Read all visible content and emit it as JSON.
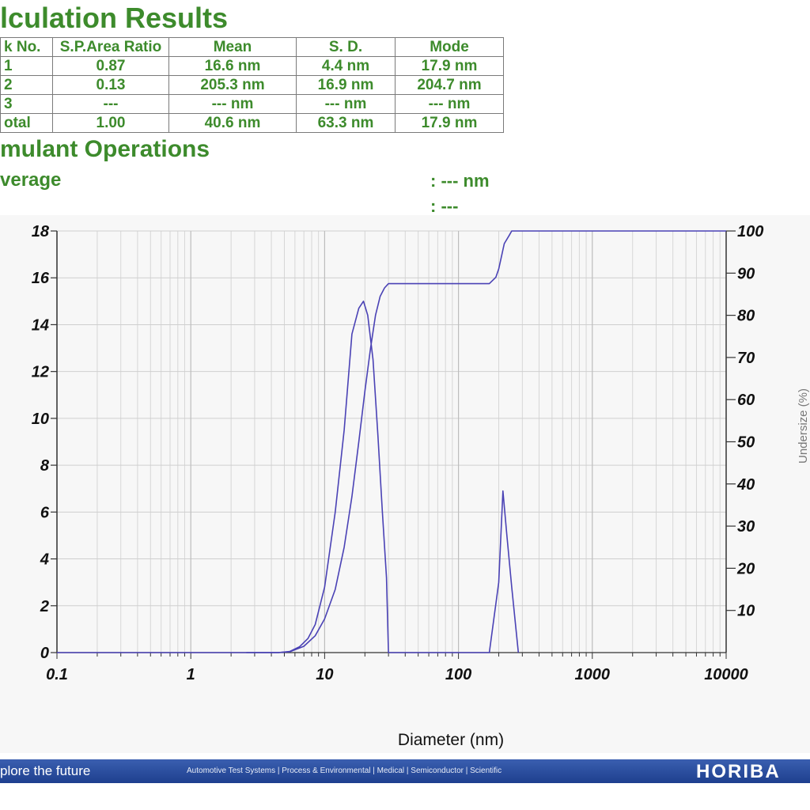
{
  "results": {
    "title": "lculation Results",
    "headers": [
      "k No.",
      "S.P.Area Ratio",
      "Mean",
      "S. D.",
      "Mode"
    ],
    "rows": [
      [
        "1",
        "0.87",
        "16.6 nm",
        "4.4 nm",
        "17.9 nm"
      ],
      [
        "2",
        "0.13",
        "205.3 nm",
        "16.9 nm",
        "204.7 nm"
      ],
      [
        "3",
        "---",
        "--- nm",
        "--- nm",
        "--- nm"
      ],
      [
        "otal",
        "1.00",
        "40.6 nm",
        "63.3 nm",
        "17.9 nm"
      ]
    ]
  },
  "cumulant": {
    "title": "mulant Operations",
    "average_label": "verage",
    "average_value": ":  --- nm",
    "second_value": ":  ---"
  },
  "footer": {
    "tagline": "plore the future",
    "divisions": "Automotive Test Systems  |  Process & Environmental  |  Medical  |  Semiconductor  |  Scientific",
    "logo": "HORIBA"
  },
  "chart_data": {
    "type": "line",
    "xlabel": "Diameter (nm)",
    "x_scale": "log",
    "xlim": [
      0.1,
      10000
    ],
    "x_ticks": [
      "0.1",
      "1",
      "10",
      "100",
      "1000",
      "10000"
    ],
    "ylim": [
      0,
      18
    ],
    "y_ticks": [
      "0",
      "2",
      "4",
      "6",
      "8",
      "10",
      "12",
      "14",
      "16",
      "18"
    ],
    "y2lim": [
      0,
      100
    ],
    "y2_ticks": [
      "10",
      "20",
      "30",
      "40",
      "50",
      "60",
      "70",
      "80",
      "90",
      "100"
    ],
    "y2label": "Undersize (%)",
    "grid": true,
    "line_color": "#4a42b5",
    "series": [
      {
        "axis": "left",
        "x": [
          0.1,
          0.3,
          2.6,
          4.5,
          5.5,
          6.5,
          7.5,
          8.5,
          10,
          12,
          14,
          16,
          18,
          19.5,
          21,
          23,
          25,
          27,
          29,
          30,
          170,
          200,
          215,
          230,
          250,
          280
        ],
        "y": [
          0,
          0,
          0,
          0,
          0.05,
          0.25,
          0.6,
          1.2,
          2.8,
          6.0,
          9.5,
          13.6,
          14.7,
          15.0,
          14.4,
          12.5,
          9.3,
          6.0,
          3.2,
          0,
          0,
          3.0,
          6.9,
          5.0,
          2.8,
          0
        ]
      },
      {
        "axis": "right",
        "x": [
          2.6,
          4.5,
          5.5,
          7,
          8.5,
          10,
          12,
          14,
          16,
          18,
          20,
          22,
          24,
          26,
          28,
          30,
          100,
          170,
          190,
          200,
          220,
          240,
          250,
          10000
        ],
        "y": [
          0,
          0,
          0.2,
          1.5,
          4,
          8,
          15,
          25,
          37,
          50,
          62,
          72,
          80,
          84.5,
          86.5,
          87.5,
          87.5,
          87.5,
          89,
          91,
          97,
          99,
          100,
          100
        ]
      }
    ]
  }
}
